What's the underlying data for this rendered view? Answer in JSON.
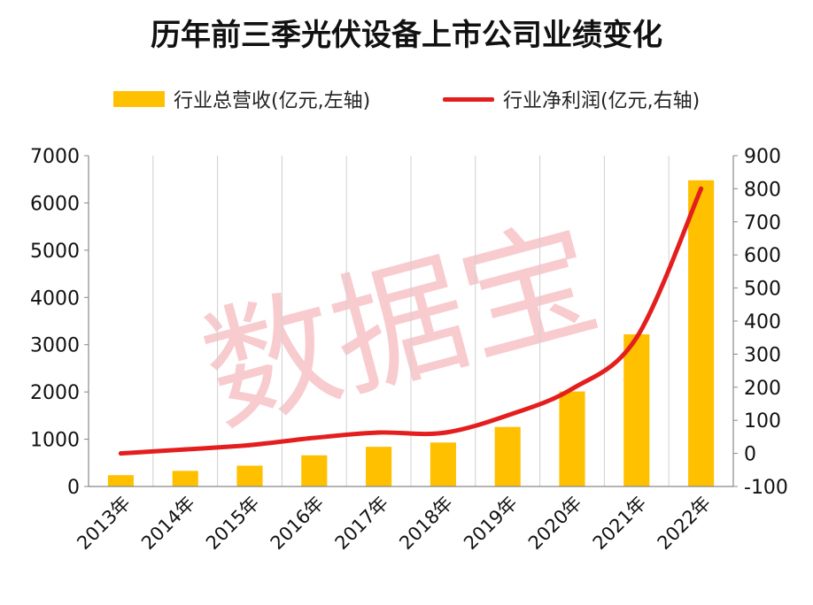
{
  "title": "历年前三季光伏设备上市公司业绩变化",
  "watermark": "数据宝",
  "legend": {
    "bar_label": "行业总营收(亿元,左轴)",
    "line_label": "行业净利润(亿元,右轴)"
  },
  "chart_data": {
    "type": "bar+line",
    "categories": [
      "2013年",
      "2014年",
      "2015年",
      "2016年",
      "2017年",
      "2018年",
      "2019年",
      "2020年",
      "2021年",
      "2022年"
    ],
    "series": [
      {
        "name": "行业总营收(亿元,左轴)",
        "type": "bar",
        "axis": "left",
        "color": "#FFC000",
        "values": [
          240,
          330,
          440,
          660,
          840,
          930,
          1260,
          2010,
          3220,
          6480
        ]
      },
      {
        "name": "行业净利润(亿元,右轴)",
        "type": "line",
        "axis": "right",
        "color": "#E41E1E",
        "values": [
          0,
          12,
          25,
          47,
          63,
          62,
          115,
          195,
          350,
          800
        ]
      }
    ],
    "y_left": {
      "min": 0,
      "max": 7000,
      "ticks": [
        0,
        1000,
        2000,
        3000,
        4000,
        5000,
        6000,
        7000
      ]
    },
    "y_right": {
      "min": -100,
      "max": 900,
      "ticks": [
        -100,
        0,
        100,
        200,
        300,
        400,
        500,
        600,
        700,
        800,
        900
      ]
    },
    "grid": "vertical",
    "legend_position": "top"
  }
}
